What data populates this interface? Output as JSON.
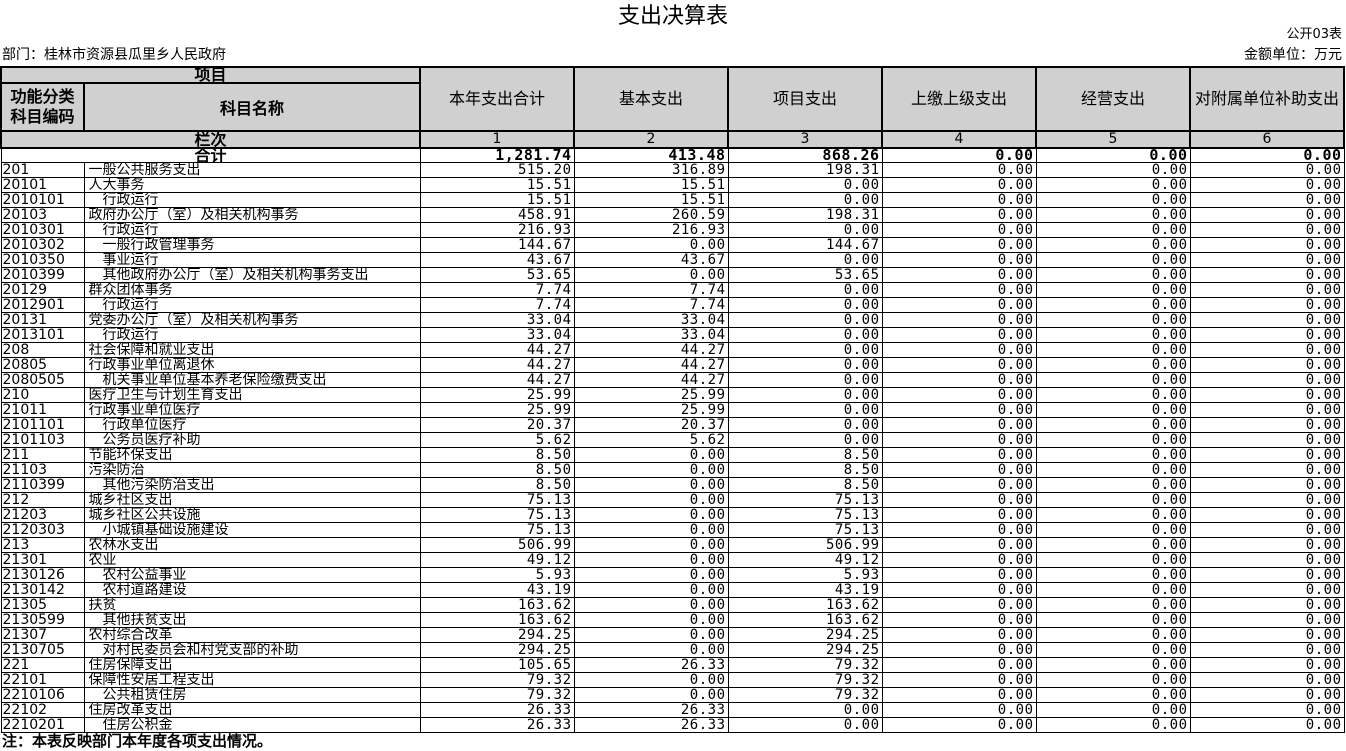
{
  "header": {
    "title": "支出决算表",
    "form_no": "公开03表",
    "department": "部门：桂林市资源县瓜里乡人民政府",
    "unit": "金额单位：万元"
  },
  "table": {
    "columns": {
      "item": "项目",
      "code": "功能分类科目编码",
      "name": "科目名称",
      "amounts": [
        "本年支出合计",
        "基本支出",
        "项目支出",
        "上缴上级支出",
        "经营支出",
        "对附属单位补助支出"
      ]
    },
    "index_label": "栏次",
    "index": [
      "1",
      "2",
      "3",
      "4",
      "5",
      "6"
    ],
    "total_label": "合计",
    "totals": [
      "1,281.74",
      "413.48",
      "868.26",
      "0.00",
      "0.00",
      "0.00"
    ],
    "rows": [
      [
        "201",
        "一般公共服务支出",
        "515.20",
        "316.89",
        "198.31",
        "0.00",
        "0.00",
        "0.00"
      ],
      [
        "20101",
        "人大事务",
        "15.51",
        "15.51",
        "0.00",
        "0.00",
        "0.00",
        "0.00"
      ],
      [
        "2010101",
        "行政运行",
        "15.51",
        "15.51",
        "0.00",
        "0.00",
        "0.00",
        "0.00"
      ],
      [
        "20103",
        "政府办公厅（室）及相关机构事务",
        "458.91",
        "260.59",
        "198.31",
        "0.00",
        "0.00",
        "0.00"
      ],
      [
        "2010301",
        "行政运行",
        "216.93",
        "216.93",
        "0.00",
        "0.00",
        "0.00",
        "0.00"
      ],
      [
        "2010302",
        "一般行政管理事务",
        "144.67",
        "0.00",
        "144.67",
        "0.00",
        "0.00",
        "0.00"
      ],
      [
        "2010350",
        "事业运行",
        "43.67",
        "43.67",
        "0.00",
        "0.00",
        "0.00",
        "0.00"
      ],
      [
        "2010399",
        "其他政府办公厅（室）及相关机构事务支出",
        "53.65",
        "0.00",
        "53.65",
        "0.00",
        "0.00",
        "0.00"
      ],
      [
        "20129",
        "群众团体事务",
        "7.74",
        "7.74",
        "0.00",
        "0.00",
        "0.00",
        "0.00"
      ],
      [
        "2012901",
        "行政运行",
        "7.74",
        "7.74",
        "0.00",
        "0.00",
        "0.00",
        "0.00"
      ],
      [
        "20131",
        "党委办公厅（室）及相关机构事务",
        "33.04",
        "33.04",
        "0.00",
        "0.00",
        "0.00",
        "0.00"
      ],
      [
        "2013101",
        "行政运行",
        "33.04",
        "33.04",
        "0.00",
        "0.00",
        "0.00",
        "0.00"
      ],
      [
        "208",
        "社会保障和就业支出",
        "44.27",
        "44.27",
        "0.00",
        "0.00",
        "0.00",
        "0.00"
      ],
      [
        "20805",
        "行政事业单位离退休",
        "44.27",
        "44.27",
        "0.00",
        "0.00",
        "0.00",
        "0.00"
      ],
      [
        "2080505",
        "机关事业单位基本养老保险缴费支出",
        "44.27",
        "44.27",
        "0.00",
        "0.00",
        "0.00",
        "0.00"
      ],
      [
        "210",
        "医疗卫生与计划生育支出",
        "25.99",
        "25.99",
        "0.00",
        "0.00",
        "0.00",
        "0.00"
      ],
      [
        "21011",
        "行政事业单位医疗",
        "25.99",
        "25.99",
        "0.00",
        "0.00",
        "0.00",
        "0.00"
      ],
      [
        "2101101",
        "行政单位医疗",
        "20.37",
        "20.37",
        "0.00",
        "0.00",
        "0.00",
        "0.00"
      ],
      [
        "2101103",
        "公务员医疗补助",
        "5.62",
        "5.62",
        "0.00",
        "0.00",
        "0.00",
        "0.00"
      ],
      [
        "211",
        "节能环保支出",
        "8.50",
        "0.00",
        "8.50",
        "0.00",
        "0.00",
        "0.00"
      ],
      [
        "21103",
        "污染防治",
        "8.50",
        "0.00",
        "8.50",
        "0.00",
        "0.00",
        "0.00"
      ],
      [
        "2110399",
        "其他污染防治支出",
        "8.50",
        "0.00",
        "8.50",
        "0.00",
        "0.00",
        "0.00"
      ],
      [
        "212",
        "城乡社区支出",
        "75.13",
        "0.00",
        "75.13",
        "0.00",
        "0.00",
        "0.00"
      ],
      [
        "21203",
        "城乡社区公共设施",
        "75.13",
        "0.00",
        "75.13",
        "0.00",
        "0.00",
        "0.00"
      ],
      [
        "2120303",
        "小城镇基础设施建设",
        "75.13",
        "0.00",
        "75.13",
        "0.00",
        "0.00",
        "0.00"
      ],
      [
        "213",
        "农林水支出",
        "506.99",
        "0.00",
        "506.99",
        "0.00",
        "0.00",
        "0.00"
      ],
      [
        "21301",
        "农业",
        "49.12",
        "0.00",
        "49.12",
        "0.00",
        "0.00",
        "0.00"
      ],
      [
        "2130126",
        "农村公益事业",
        "5.93",
        "0.00",
        "5.93",
        "0.00",
        "0.00",
        "0.00"
      ],
      [
        "2130142",
        "农村道路建设",
        "43.19",
        "0.00",
        "43.19",
        "0.00",
        "0.00",
        "0.00"
      ],
      [
        "21305",
        "扶贫",
        "163.62",
        "0.00",
        "163.62",
        "0.00",
        "0.00",
        "0.00"
      ],
      [
        "2130599",
        "其他扶贫支出",
        "163.62",
        "0.00",
        "163.62",
        "0.00",
        "0.00",
        "0.00"
      ],
      [
        "21307",
        "农村综合改革",
        "294.25",
        "0.00",
        "294.25",
        "0.00",
        "0.00",
        "0.00"
      ],
      [
        "2130705",
        "对村民委员会和村党支部的补助",
        "294.25",
        "0.00",
        "294.25",
        "0.00",
        "0.00",
        "0.00"
      ],
      [
        "221",
        "住房保障支出",
        "105.65",
        "26.33",
        "79.32",
        "0.00",
        "0.00",
        "0.00"
      ],
      [
        "22101",
        "保障性安居工程支出",
        "79.32",
        "0.00",
        "79.32",
        "0.00",
        "0.00",
        "0.00"
      ],
      [
        "2210106",
        "公共租赁住房",
        "79.32",
        "0.00",
        "79.32",
        "0.00",
        "0.00",
        "0.00"
      ],
      [
        "22102",
        "住房改革支出",
        "26.33",
        "26.33",
        "0.00",
        "0.00",
        "0.00",
        "0.00"
      ],
      [
        "2210201",
        "住房公积金",
        "26.33",
        "26.33",
        "0.00",
        "0.00",
        "0.00",
        "0.00"
      ]
    ]
  },
  "footer": {
    "note": "注：本表反映部门本年度各项支出情况。"
  }
}
